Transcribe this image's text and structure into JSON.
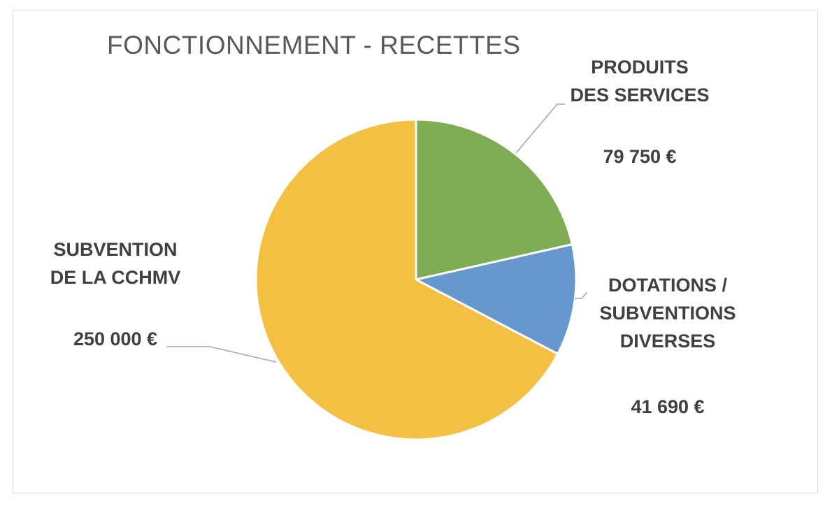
{
  "chart_data": {
    "type": "pie",
    "title": "FONCTIONNEMENT - RECETTES",
    "slices": [
      {
        "label": [
          "PRODUITS",
          "DES SERVICES"
        ],
        "value": 79750,
        "value_label": "79 750 €",
        "color": "#80AC55"
      },
      {
        "label": [
          "DOTATIONS /",
          "SUBVENTIONS",
          "DIVERSES"
        ],
        "value": 41690,
        "value_label": "41 690 €",
        "color": "#6798CD"
      },
      {
        "label": [
          "SUBVENTION",
          "DE LA CCHMV"
        ],
        "value": 250000,
        "value_label": "250 000 €",
        "color": "#F3C043"
      }
    ],
    "start_angle_deg": 0,
    "direction": "clockwise",
    "legend": "none",
    "data_labels": "outside-with-leader-lines"
  }
}
